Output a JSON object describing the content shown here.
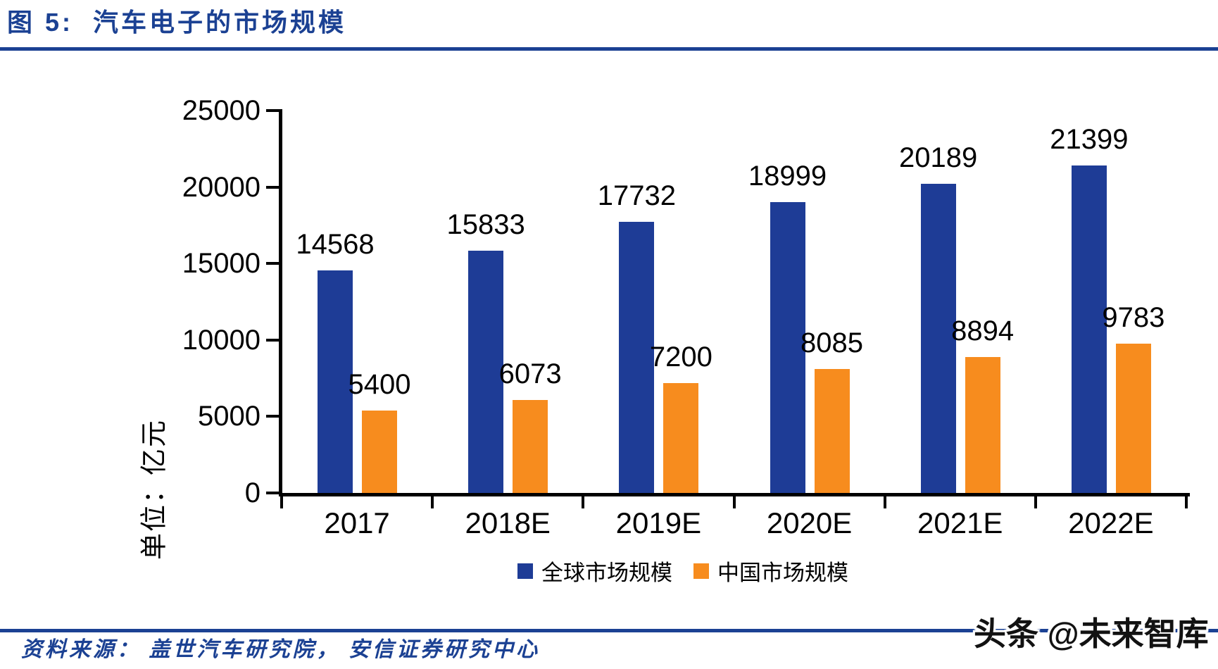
{
  "header": {
    "title": "图 5:  汽车电子的市场规模"
  },
  "chart_data": {
    "type": "bar",
    "categories": [
      "2017",
      "2018E",
      "2019E",
      "2020E",
      "2021E",
      "2022E"
    ],
    "series": [
      {
        "name": "全球市场规模",
        "color": "#1E3C96",
        "values": [
          14568,
          15833,
          17732,
          18999,
          20189,
          21399
        ]
      },
      {
        "name": "中国市场规模",
        "color": "#F78C1E",
        "values": [
          5400,
          6073,
          7200,
          8085,
          8894,
          9783
        ]
      }
    ],
    "title": "汽车电子的市场规模",
    "xlabel": "",
    "ylabel": "单位：亿元",
    "ylim": [
      0,
      25000
    ],
    "yticks": [
      0,
      5000,
      10000,
      15000,
      20000,
      25000
    ],
    "grid": false,
    "data_labels": true,
    "legend_position": "bottom"
  },
  "footer": {
    "source": "资料来源： 盖世汽车研究院， 安信证券研究中心",
    "watermark": "头条 @未来智库"
  },
  "colors": {
    "accent_navy": "#1B4193",
    "bar_blue": "#1E3C96",
    "bar_orange": "#F78C1E",
    "axis_black": "#000000"
  }
}
